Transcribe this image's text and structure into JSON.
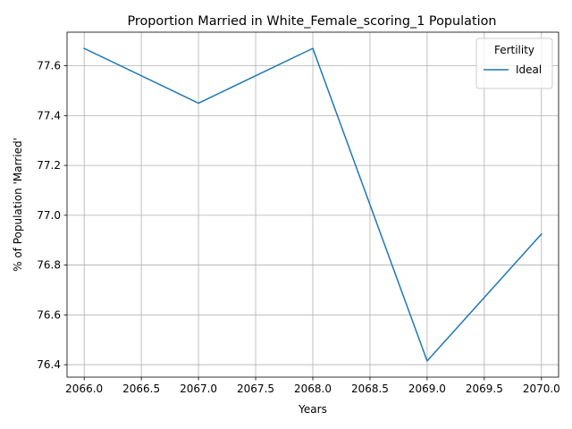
{
  "chart_data": {
    "type": "line",
    "title": "Proportion Married in White_Female_scoring_1 Population",
    "xlabel": "Years",
    "ylabel": "% of Population 'Married'",
    "x": [
      2066,
      2067,
      2068,
      2069,
      2070
    ],
    "series": [
      {
        "name": "Ideal",
        "color": "#1f77b4",
        "values": [
          77.67,
          77.45,
          77.67,
          76.415,
          76.925
        ]
      }
    ],
    "xlim": [
      2065.85,
      2070.15
    ],
    "ylim": [
      76.35,
      77.735
    ],
    "xticks": [
      "2066.0",
      "2066.5",
      "2067.0",
      "2067.5",
      "2068.0",
      "2068.5",
      "2069.0",
      "2069.5",
      "2070.0"
    ],
    "xtick_values": [
      2066.0,
      2066.5,
      2067.0,
      2067.5,
      2068.0,
      2068.5,
      2069.0,
      2069.5,
      2070.0
    ],
    "yticks": [
      "76.4",
      "76.6",
      "76.8",
      "77.0",
      "77.2",
      "77.4",
      "77.6"
    ],
    "ytick_values": [
      76.4,
      76.6,
      76.8,
      77.0,
      77.2,
      77.4,
      77.6
    ],
    "grid": true,
    "legend": {
      "title": "Fertility",
      "position": "top-right"
    }
  }
}
